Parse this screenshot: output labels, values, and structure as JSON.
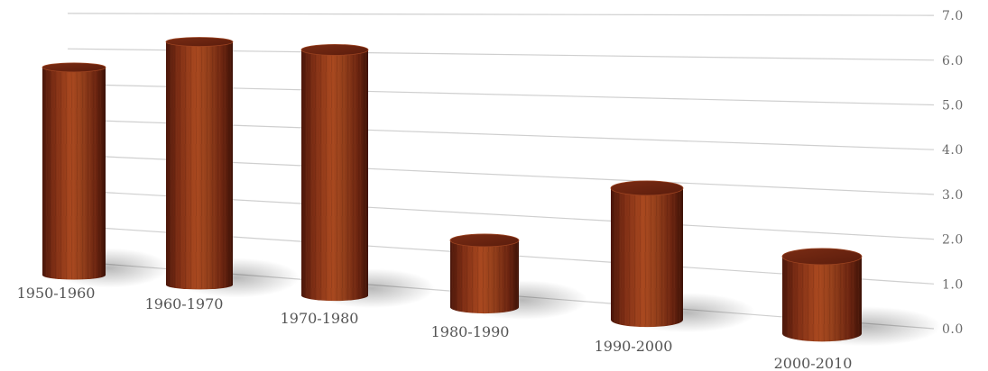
{
  "chart_data": {
    "type": "bar",
    "title": "",
    "xlabel": "",
    "ylabel": "",
    "categories": [
      "1950-1960",
      "1960-1970",
      "1970-1980",
      "1980-1990",
      "1990-2000",
      "2000-2010"
    ],
    "values": [
      6.3,
      7.1,
      6.9,
      1.8,
      3.4,
      1.9
    ],
    "ylim": [
      0,
      7
    ],
    "yticks": [
      "0.0",
      "1.0",
      "2.0",
      "3.0",
      "4.0",
      "5.0",
      "6.0",
      "7.0"
    ],
    "grid": true,
    "legend": "none",
    "style": "3d-cylinders",
    "colors": {
      "bar": "#8a3318",
      "bar_dark": "#4a160a",
      "bar_light": "#b5532a",
      "grid": "#cfcfcf"
    }
  }
}
